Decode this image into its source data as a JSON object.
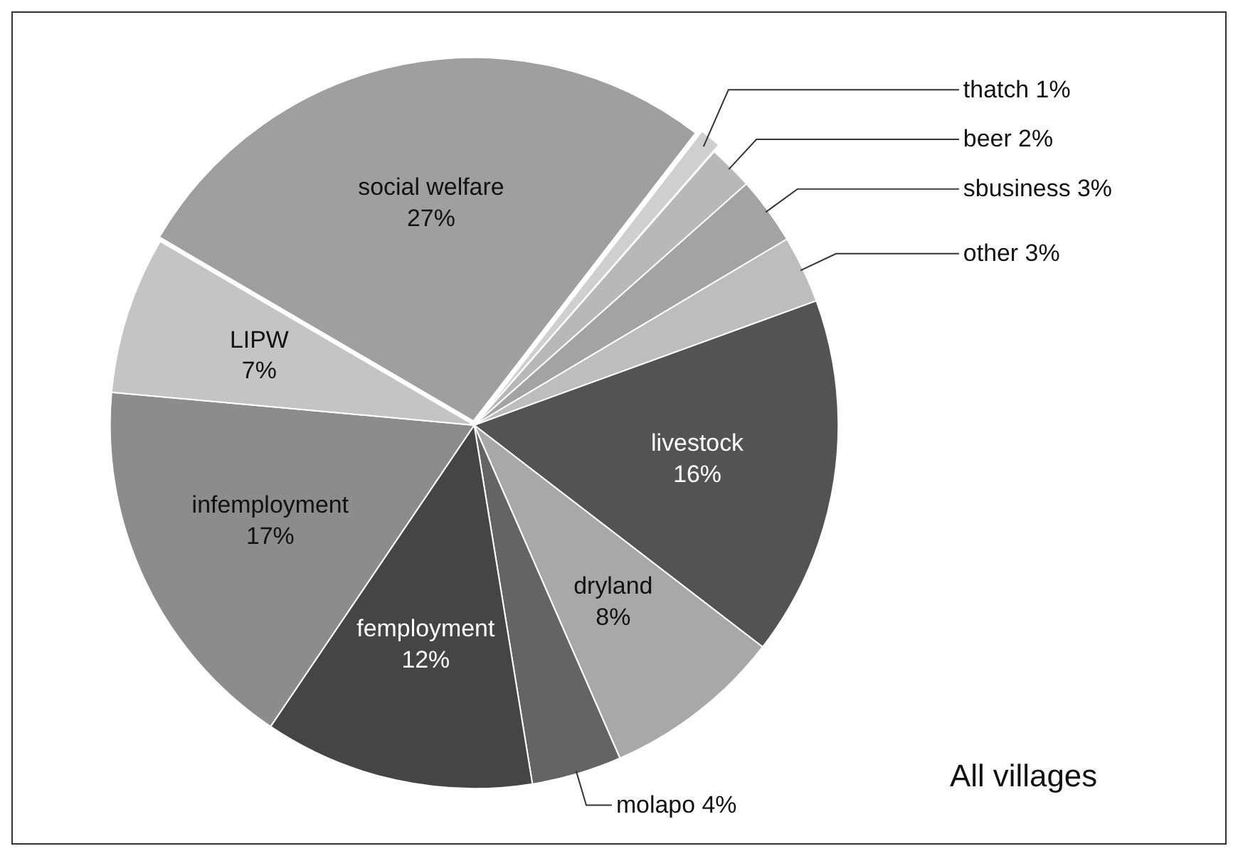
{
  "chart_data": {
    "type": "pie",
    "categories": [
      "thatch",
      "beer",
      "sbusiness",
      "other",
      "livestock",
      "dryland",
      "molapo",
      "femployment",
      "infemployment",
      "LIPW",
      "social welfare"
    ],
    "values": [
      1,
      2,
      3,
      3,
      16,
      8,
      4,
      12,
      17,
      7,
      27
    ],
    "value_labels": [
      "1%",
      "2%",
      "3%",
      "3%",
      "16%",
      "8%",
      "4%",
      "12%",
      "17%",
      "7%",
      "27%"
    ],
    "colors": [
      "#cfcfcf",
      "#b8b8b8",
      "#a3a3a3",
      "#bdbdbd",
      "#535353",
      "#a8a8a8",
      "#646464",
      "#454545",
      "#8c8c8c",
      "#c4c4c4",
      "#9f9f9f"
    ],
    "annotations": [
      "All villages"
    ]
  }
}
